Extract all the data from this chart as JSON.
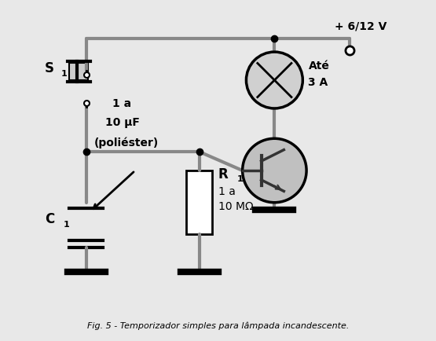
{
  "title": "Fig. 5 - Temporizador simples para lâmpada incandescente.",
  "bg_color": "#e8e8e8",
  "wire_color": "#888888",
  "wire_lw": 3,
  "component_color": "#000000",
  "fill_color": "#cccccc",
  "dark_fill": "#333333",
  "text_voltage": "+ 6/12 V",
  "text_s1": "S",
  "text_s1_sub": "1",
  "text_c1": "C",
  "text_c1_sub": "1",
  "text_r1": "R",
  "text_r1_sub": "1",
  "text_cap_label": "1 a\n10 μF\n(poliéster)",
  "text_res_label": "1 a\n10 MΩ",
  "text_lamp": "Até\n3 A"
}
